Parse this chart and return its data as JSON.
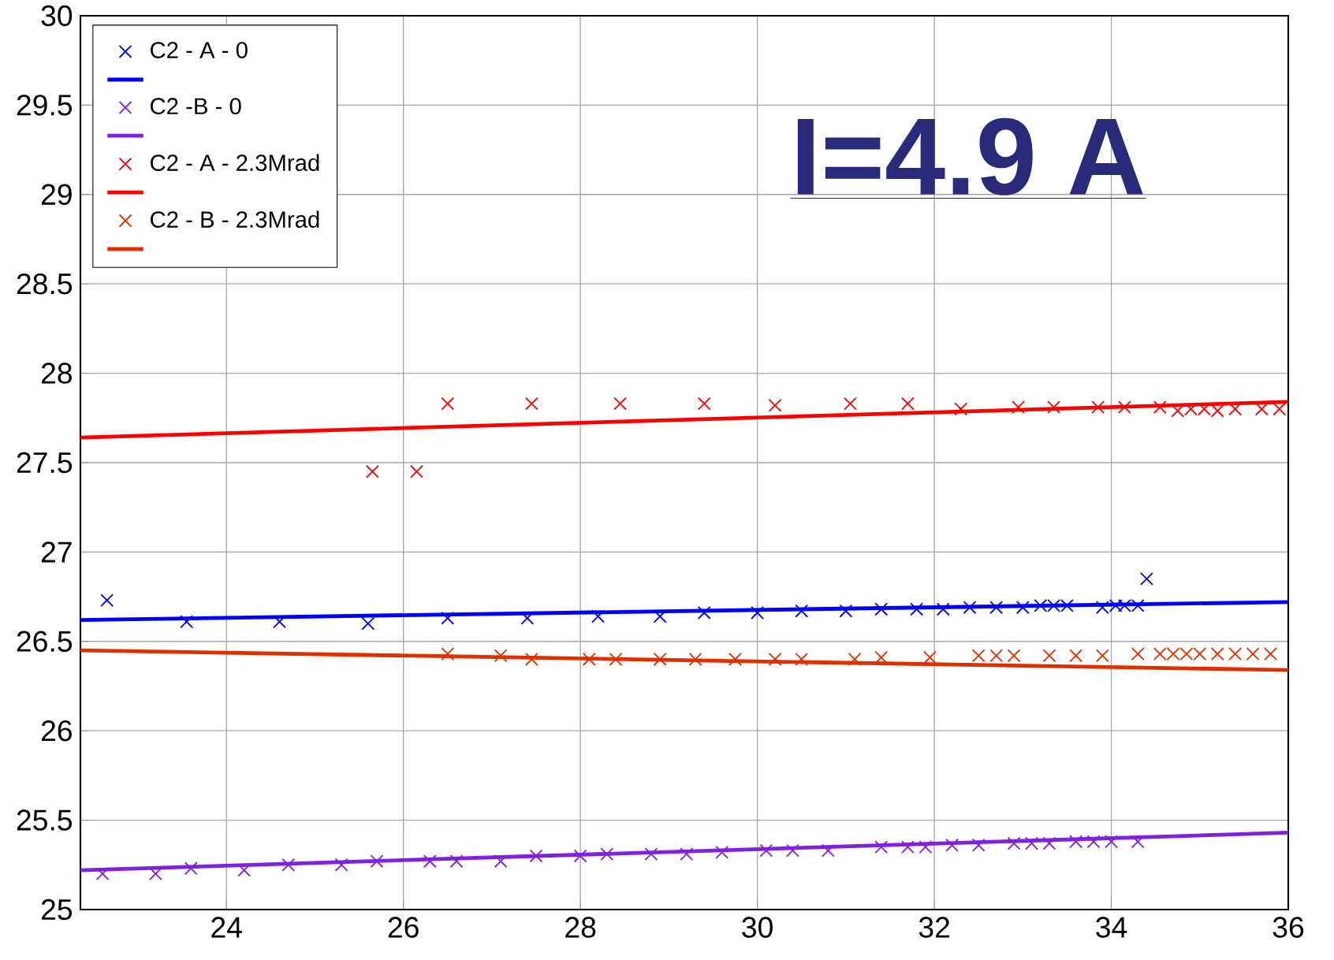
{
  "chart_data": {
    "type": "scatter",
    "xlim": [
      22.35,
      36
    ],
    "ylim": [
      25,
      30
    ],
    "xticks": [
      24,
      26,
      28,
      30,
      32,
      34,
      36
    ],
    "yticks": [
      25,
      25.5,
      26,
      26.5,
      27,
      27.5,
      28,
      28.5,
      29,
      29.5,
      30
    ],
    "grid": true,
    "legend": "top left",
    "annotations": [
      "**I=4.9 A**"
    ],
    "series": [
      {
        "name": "C2 - A - 0",
        "marker": "cross",
        "color": "#0000ff",
        "x": [
          22.65,
          23.55,
          24.6,
          25.6,
          26.5,
          27.4,
          28.2,
          28.9,
          29.4,
          30.0,
          30.5,
          31.0,
          31.4,
          31.8,
          32.1,
          32.4,
          32.7,
          33.0,
          33.2,
          33.35,
          33.5,
          33.9,
          34.05,
          34.15,
          34.3,
          34.4
        ],
        "values": [
          26.73,
          26.61,
          26.61,
          26.6,
          26.63,
          26.63,
          26.64,
          26.64,
          26.66,
          26.66,
          26.67,
          26.67,
          26.68,
          26.68,
          26.68,
          26.69,
          26.69,
          26.69,
          26.7,
          26.7,
          26.7,
          26.69,
          26.7,
          26.7,
          26.7,
          26.85
        ]
      },
      {
        "type": "line",
        "color": "#0000ff",
        "x": [
          22.35,
          36
        ],
        "values": [
          26.62,
          26.72
        ]
      },
      {
        "name": "C2 -B - 0",
        "marker": "cross",
        "color": "#8020e0",
        "x": [
          22.6,
          23.2,
          23.6,
          24.2,
          24.7,
          25.3,
          25.7,
          26.3,
          26.6,
          27.1,
          27.5,
          28.0,
          28.3,
          28.8,
          29.2,
          29.6,
          30.1,
          30.4,
          30.8,
          31.4,
          31.7,
          31.9,
          32.2,
          32.5,
          32.9,
          33.1,
          33.3,
          33.6,
          33.8,
          34.0,
          34.3
        ],
        "values": [
          25.2,
          25.2,
          25.23,
          25.22,
          25.25,
          25.25,
          25.27,
          25.27,
          25.27,
          25.27,
          25.3,
          25.3,
          25.31,
          25.31,
          25.31,
          25.32,
          25.33,
          25.33,
          25.33,
          25.35,
          25.35,
          25.35,
          25.36,
          25.36,
          25.37,
          25.37,
          25.37,
          25.38,
          25.38,
          25.38,
          25.38
        ]
      },
      {
        "type": "line",
        "color": "#8020e0",
        "x": [
          22.35,
          36
        ],
        "values": [
          25.22,
          25.43
        ]
      },
      {
        "name": "C2 - A - 2.3Mrad",
        "marker": "cross",
        "color": "#ff0000",
        "x": [
          25.65,
          26.15,
          26.5,
          27.45,
          28.45,
          29.4,
          30.2,
          31.05,
          31.7,
          32.3,
          32.95,
          33.35,
          33.85,
          34.15,
          34.55,
          34.75,
          34.9,
          35.05,
          35.2,
          35.4,
          35.7,
          35.9
        ],
        "values": [
          27.45,
          27.45,
          27.83,
          27.83,
          27.83,
          27.83,
          27.82,
          27.83,
          27.83,
          27.8,
          27.81,
          27.81,
          27.81,
          27.81,
          27.81,
          27.79,
          27.8,
          27.8,
          27.79,
          27.8,
          27.8,
          27.8
        ]
      },
      {
        "type": "line",
        "color": "#ff0000",
        "x": [
          22.35,
          36
        ],
        "values": [
          27.64,
          27.84
        ]
      },
      {
        "name": "C2 - B - 2.3Mrad",
        "marker": "cross",
        "color": "#e03000",
        "x": [
          26.5,
          27.1,
          27.45,
          28.1,
          28.4,
          28.9,
          29.3,
          29.75,
          30.2,
          30.5,
          31.1,
          31.4,
          31.95,
          32.5,
          32.7,
          32.9,
          33.3,
          33.6,
          33.9,
          34.3,
          34.55,
          34.7,
          34.85,
          35.0,
          35.2,
          35.4,
          35.6,
          35.8
        ],
        "values": [
          26.43,
          26.42,
          26.4,
          26.4,
          26.4,
          26.4,
          26.4,
          26.4,
          26.4,
          26.4,
          26.4,
          26.41,
          26.41,
          26.42,
          26.42,
          26.42,
          26.42,
          26.42,
          26.42,
          26.43,
          26.43,
          26.43,
          26.43,
          26.43,
          26.43,
          26.43,
          26.43,
          26.43
        ]
      },
      {
        "type": "line",
        "color": "#e03000",
        "x": [
          22.35,
          36
        ],
        "values": [
          26.45,
          26.34
        ]
      }
    ]
  }
}
